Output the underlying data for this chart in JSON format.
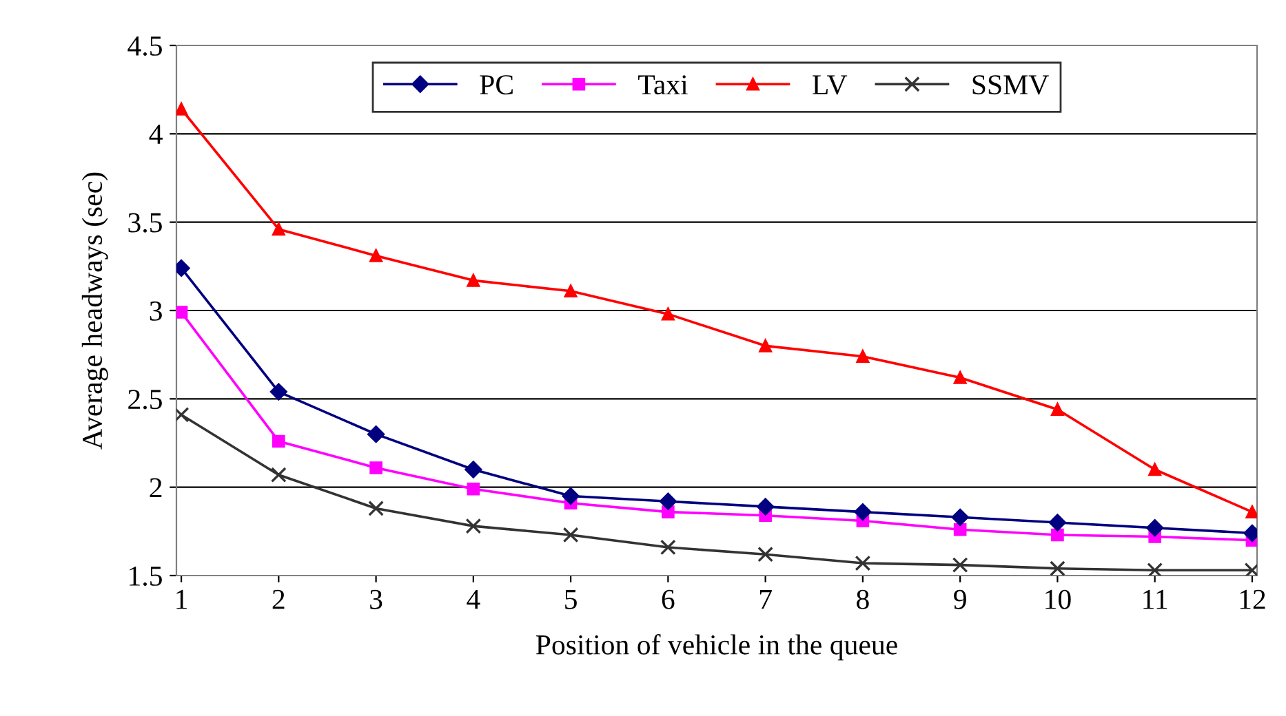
{
  "chart_data": {
    "type": "line",
    "xlabel": "Position of vehicle in the queue",
    "ylabel": "Average headways (sec)",
    "categories": [
      "1",
      "2",
      "3",
      "4",
      "5",
      "6",
      "7",
      "8",
      "9",
      "10",
      "11",
      "12"
    ],
    "ylim": [
      1.5,
      4.5
    ],
    "yticks": [
      1.5,
      2,
      2.5,
      3,
      3.5,
      4,
      4.5
    ],
    "grid": "y",
    "legend": "top",
    "series": [
      {
        "name": "PC",
        "color": "#000080",
        "marker": "diamond",
        "values": [
          3.24,
          2.54,
          2.3,
          2.1,
          1.95,
          1.92,
          1.89,
          1.86,
          1.83,
          1.8,
          1.77,
          1.74
        ]
      },
      {
        "name": "Taxi",
        "color": "#ff00ff",
        "marker": "square",
        "values": [
          2.99,
          2.26,
          2.11,
          1.99,
          1.91,
          1.86,
          1.84,
          1.81,
          1.76,
          1.73,
          1.72,
          1.7
        ]
      },
      {
        "name": "LV",
        "color": "#ff0000",
        "marker": "triangle",
        "values": [
          4.14,
          3.46,
          3.31,
          3.17,
          3.11,
          2.98,
          2.8,
          2.74,
          2.62,
          2.44,
          2.1,
          1.86
        ]
      },
      {
        "name": "SSMV",
        "color": "#333333",
        "marker": "cross",
        "values": [
          2.41,
          2.07,
          1.88,
          1.78,
          1.73,
          1.66,
          1.62,
          1.57,
          1.56,
          1.54,
          1.53,
          1.53
        ]
      }
    ]
  }
}
